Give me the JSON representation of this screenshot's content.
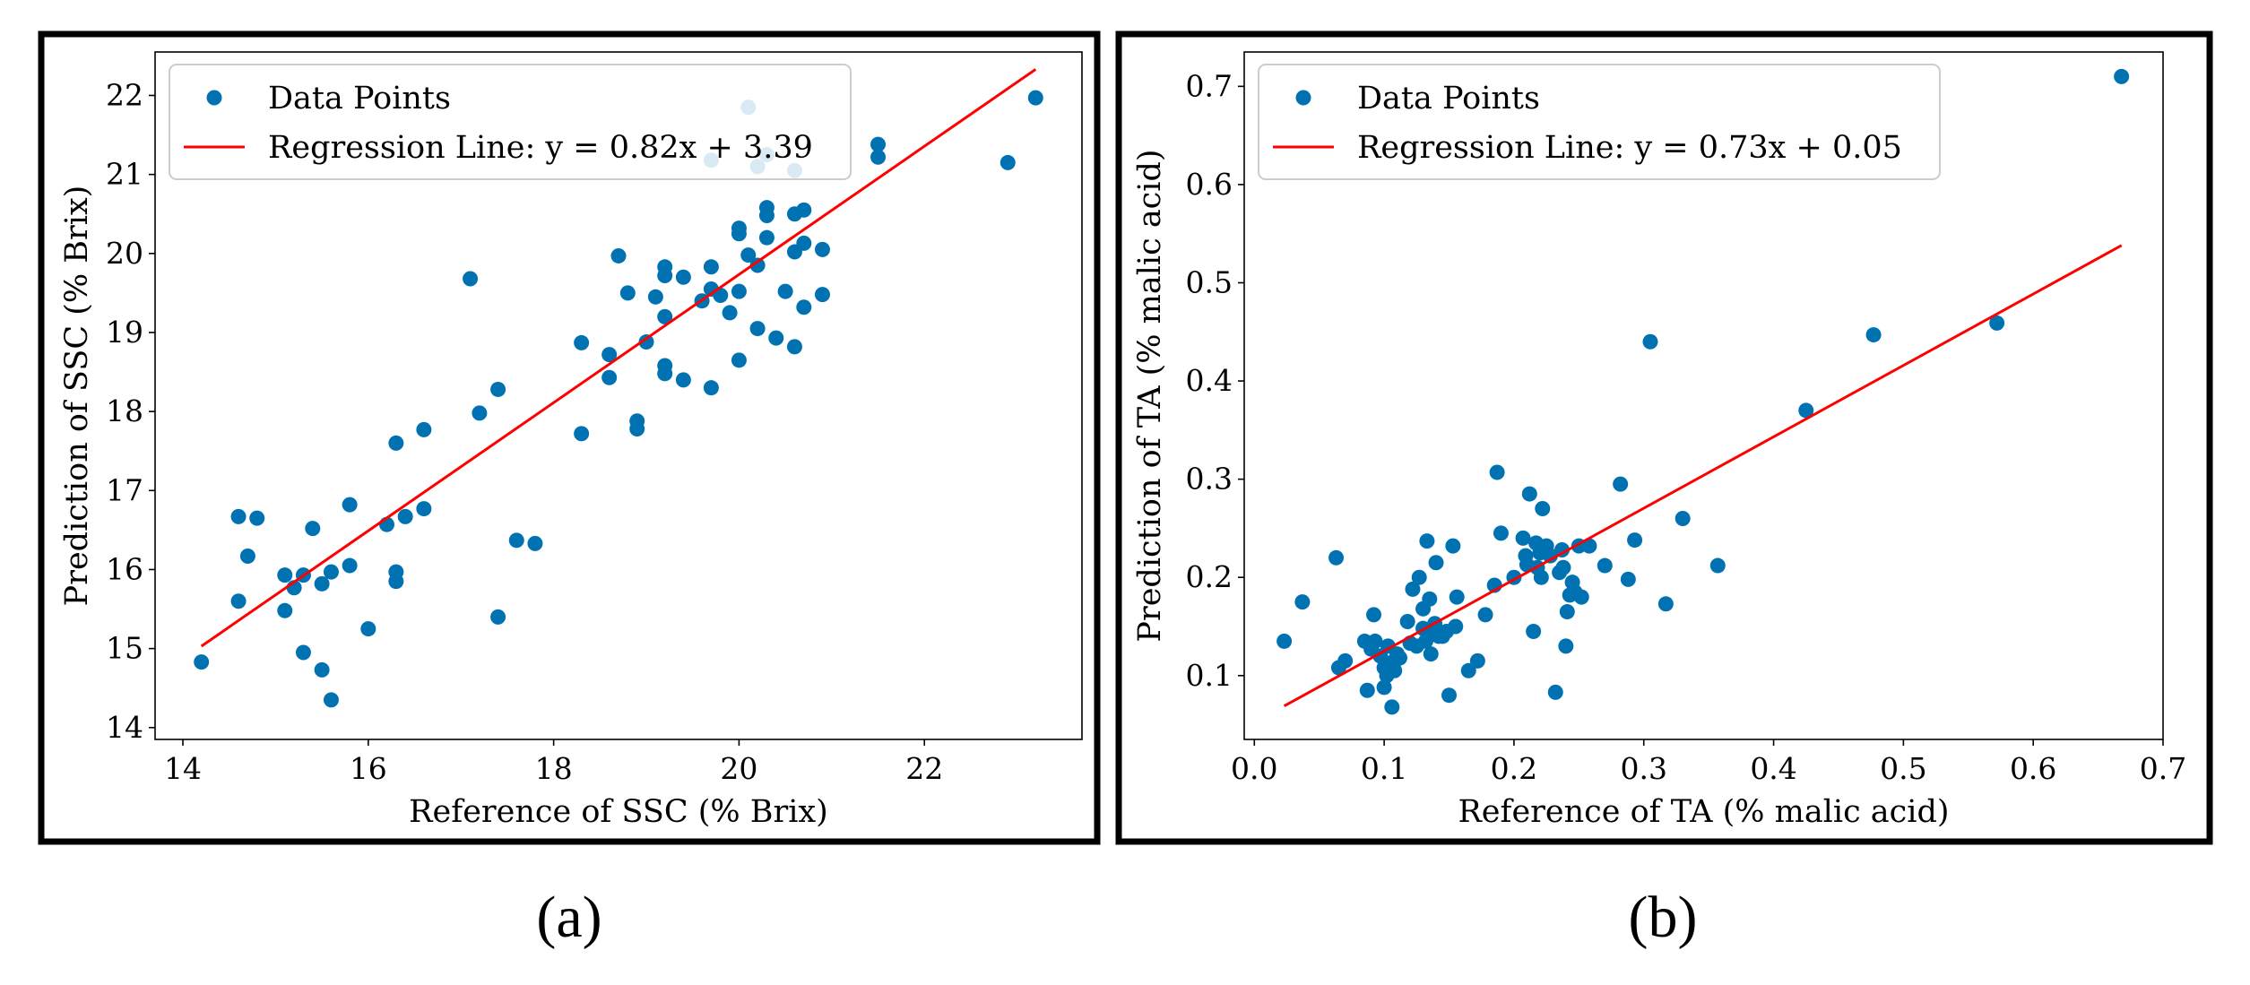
{
  "chart_data": [
    {
      "type": "scatter",
      "panel_label": "(a)",
      "xlabel": "Reference of SSC (% Brix)",
      "ylabel": "Prediction of SSC (% Brix)",
      "xlim": [
        13.7,
        23.7
      ],
      "ylim": [
        13.85,
        22.55
      ],
      "xticks": [
        14,
        16,
        18,
        20,
        22
      ],
      "yticks": [
        14,
        15,
        16,
        17,
        18,
        19,
        20,
        21,
        22
      ],
      "tick_decimals": 0,
      "legend_position": "upper-left",
      "series": [
        {
          "name": "Data Points",
          "kind": "points",
          "color": "#0072b2",
          "points": [
            [
              14.2,
              14.83
            ],
            [
              14.6,
              15.6
            ],
            [
              14.6,
              16.67
            ],
            [
              14.7,
              16.17
            ],
            [
              14.8,
              16.65
            ],
            [
              15.1,
              15.48
            ],
            [
              15.1,
              15.93
            ],
            [
              15.2,
              15.77
            ],
            [
              15.3,
              14.95
            ],
            [
              15.3,
              15.93
            ],
            [
              15.4,
              16.52
            ],
            [
              15.5,
              15.82
            ],
            [
              15.5,
              14.73
            ],
            [
              15.6,
              15.97
            ],
            [
              15.6,
              14.35
            ],
            [
              15.8,
              16.82
            ],
            [
              15.8,
              16.05
            ],
            [
              16.0,
              15.25
            ],
            [
              16.2,
              16.57
            ],
            [
              16.3,
              17.6
            ],
            [
              16.3,
              15.97
            ],
            [
              16.3,
              15.85
            ],
            [
              16.4,
              16.67
            ],
            [
              16.6,
              16.77
            ],
            [
              16.6,
              17.77
            ],
            [
              17.1,
              19.68
            ],
            [
              17.2,
              17.98
            ],
            [
              17.4,
              18.28
            ],
            [
              17.4,
              15.4
            ],
            [
              17.6,
              16.37
            ],
            [
              17.8,
              16.33
            ],
            [
              18.3,
              18.87
            ],
            [
              18.3,
              17.72
            ],
            [
              18.6,
              18.72
            ],
            [
              18.6,
              18.43
            ],
            [
              18.7,
              19.97
            ],
            [
              18.8,
              19.5
            ],
            [
              18.9,
              17.88
            ],
            [
              18.9,
              17.78
            ],
            [
              19.0,
              18.88
            ],
            [
              19.1,
              19.45
            ],
            [
              19.2,
              19.83
            ],
            [
              19.2,
              19.72
            ],
            [
              19.2,
              19.2
            ],
            [
              19.2,
              18.58
            ],
            [
              19.2,
              18.48
            ],
            [
              19.4,
              18.4
            ],
            [
              19.4,
              19.7
            ],
            [
              19.6,
              19.4
            ],
            [
              19.7,
              21.18
            ],
            [
              19.7,
              19.83
            ],
            [
              19.7,
              19.55
            ],
            [
              19.7,
              18.3
            ],
            [
              19.8,
              19.47
            ],
            [
              19.9,
              19.25
            ],
            [
              20.0,
              20.32
            ],
            [
              20.0,
              20.25
            ],
            [
              20.0,
              19.52
            ],
            [
              20.0,
              18.65
            ],
            [
              20.1,
              21.85
            ],
            [
              20.1,
              19.98
            ],
            [
              20.2,
              21.1
            ],
            [
              20.2,
              19.85
            ],
            [
              20.2,
              19.05
            ],
            [
              20.3,
              21.25
            ],
            [
              20.3,
              20.58
            ],
            [
              20.3,
              20.48
            ],
            [
              20.3,
              20.2
            ],
            [
              20.4,
              18.93
            ],
            [
              20.5,
              19.52
            ],
            [
              20.6,
              21.05
            ],
            [
              20.6,
              20.5
            ],
            [
              20.6,
              20.02
            ],
            [
              20.6,
              18.82
            ],
            [
              20.7,
              20.55
            ],
            [
              20.7,
              20.13
            ],
            [
              20.7,
              19.32
            ],
            [
              20.9,
              20.05
            ],
            [
              20.9,
              19.48
            ],
            [
              21.5,
              21.38
            ],
            [
              21.5,
              21.22
            ],
            [
              22.9,
              21.15
            ],
            [
              23.2,
              21.97
            ]
          ]
        },
        {
          "name": "Regression Line: y = 0.82x + 3.39",
          "kind": "line",
          "color": "#ff0000",
          "points": [
            [
              14.2,
              15.03
            ],
            [
              23.2,
              22.33
            ]
          ]
        }
      ]
    },
    {
      "type": "scatter",
      "panel_label": "(b)",
      "xlabel": "Reference of TA (% malic acid)",
      "ylabel": "Prediction of TA (% malic acid)",
      "xlim": [
        -0.0078,
        0.7
      ],
      "ylim": [
        0.035,
        0.735
      ],
      "xticks": [
        0.0,
        0.1,
        0.2,
        0.3,
        0.4,
        0.5,
        0.6,
        0.7
      ],
      "yticks": [
        0.1,
        0.2,
        0.3,
        0.4,
        0.5,
        0.6,
        0.7
      ],
      "tick_decimals": 1,
      "legend_position": "upper-left",
      "series": [
        {
          "name": "Data Points",
          "kind": "points",
          "color": "#0072b2",
          "points": [
            [
              0.023,
              0.135
            ],
            [
              0.037,
              0.175
            ],
            [
              0.063,
              0.22
            ],
            [
              0.065,
              0.108
            ],
            [
              0.07,
              0.115
            ],
            [
              0.085,
              0.135
            ],
            [
              0.087,
              0.085
            ],
            [
              0.09,
              0.127
            ],
            [
              0.092,
              0.162
            ],
            [
              0.093,
              0.135
            ],
            [
              0.097,
              0.12
            ],
            [
              0.1,
              0.108
            ],
            [
              0.1,
              0.088
            ],
            [
              0.102,
              0.1
            ],
            [
              0.103,
              0.13
            ],
            [
              0.105,
              0.113
            ],
            [
              0.106,
              0.068
            ],
            [
              0.107,
              0.11
            ],
            [
              0.108,
              0.105
            ],
            [
              0.11,
              0.122
            ],
            [
              0.112,
              0.118
            ],
            [
              0.118,
              0.155
            ],
            [
              0.12,
              0.133
            ],
            [
              0.122,
              0.188
            ],
            [
              0.125,
              0.13
            ],
            [
              0.127,
              0.2
            ],
            [
              0.13,
              0.148
            ],
            [
              0.13,
              0.168
            ],
            [
              0.132,
              0.135
            ],
            [
              0.133,
              0.237
            ],
            [
              0.135,
              0.178
            ],
            [
              0.136,
              0.122
            ],
            [
              0.137,
              0.145
            ],
            [
              0.139,
              0.153
            ],
            [
              0.14,
              0.215
            ],
            [
              0.142,
              0.14
            ],
            [
              0.145,
              0.14
            ],
            [
              0.148,
              0.145
            ],
            [
              0.15,
              0.08
            ],
            [
              0.153,
              0.232
            ],
            [
              0.155,
              0.15
            ],
            [
              0.156,
              0.18
            ],
            [
              0.165,
              0.105
            ],
            [
              0.172,
              0.115
            ],
            [
              0.178,
              0.162
            ],
            [
              0.185,
              0.192
            ],
            [
              0.187,
              0.307
            ],
            [
              0.19,
              0.245
            ],
            [
              0.2,
              0.2
            ],
            [
              0.207,
              0.24
            ],
            [
              0.209,
              0.222
            ],
            [
              0.21,
              0.213
            ],
            [
              0.212,
              0.285
            ],
            [
              0.215,
              0.145
            ],
            [
              0.217,
              0.235
            ],
            [
              0.218,
              0.21
            ],
            [
              0.22,
              0.225
            ],
            [
              0.221,
              0.2
            ],
            [
              0.222,
              0.27
            ],
            [
              0.225,
              0.232
            ],
            [
              0.228,
              0.222
            ],
            [
              0.232,
              0.083
            ],
            [
              0.235,
              0.205
            ],
            [
              0.237,
              0.228
            ],
            [
              0.238,
              0.21
            ],
            [
              0.24,
              0.13
            ],
            [
              0.241,
              0.165
            ],
            [
              0.243,
              0.182
            ],
            [
              0.245,
              0.195
            ],
            [
              0.247,
              0.185
            ],
            [
              0.25,
              0.232
            ],
            [
              0.252,
              0.18
            ],
            [
              0.258,
              0.232
            ],
            [
              0.27,
              0.212
            ],
            [
              0.282,
              0.295
            ],
            [
              0.288,
              0.198
            ],
            [
              0.293,
              0.238
            ],
            [
              0.305,
              0.44
            ],
            [
              0.317,
              0.173
            ],
            [
              0.33,
              0.26
            ],
            [
              0.357,
              0.212
            ],
            [
              0.425,
              0.37
            ],
            [
              0.477,
              0.447
            ],
            [
              0.572,
              0.459
            ],
            [
              0.668,
              0.71
            ]
          ]
        },
        {
          "name": "Regression Line: y = 0.73x + 0.05",
          "kind": "line",
          "color": "#ff0000",
          "points": [
            [
              0.023,
              0.069
            ],
            [
              0.668,
              0.538
            ]
          ]
        }
      ]
    }
  ]
}
